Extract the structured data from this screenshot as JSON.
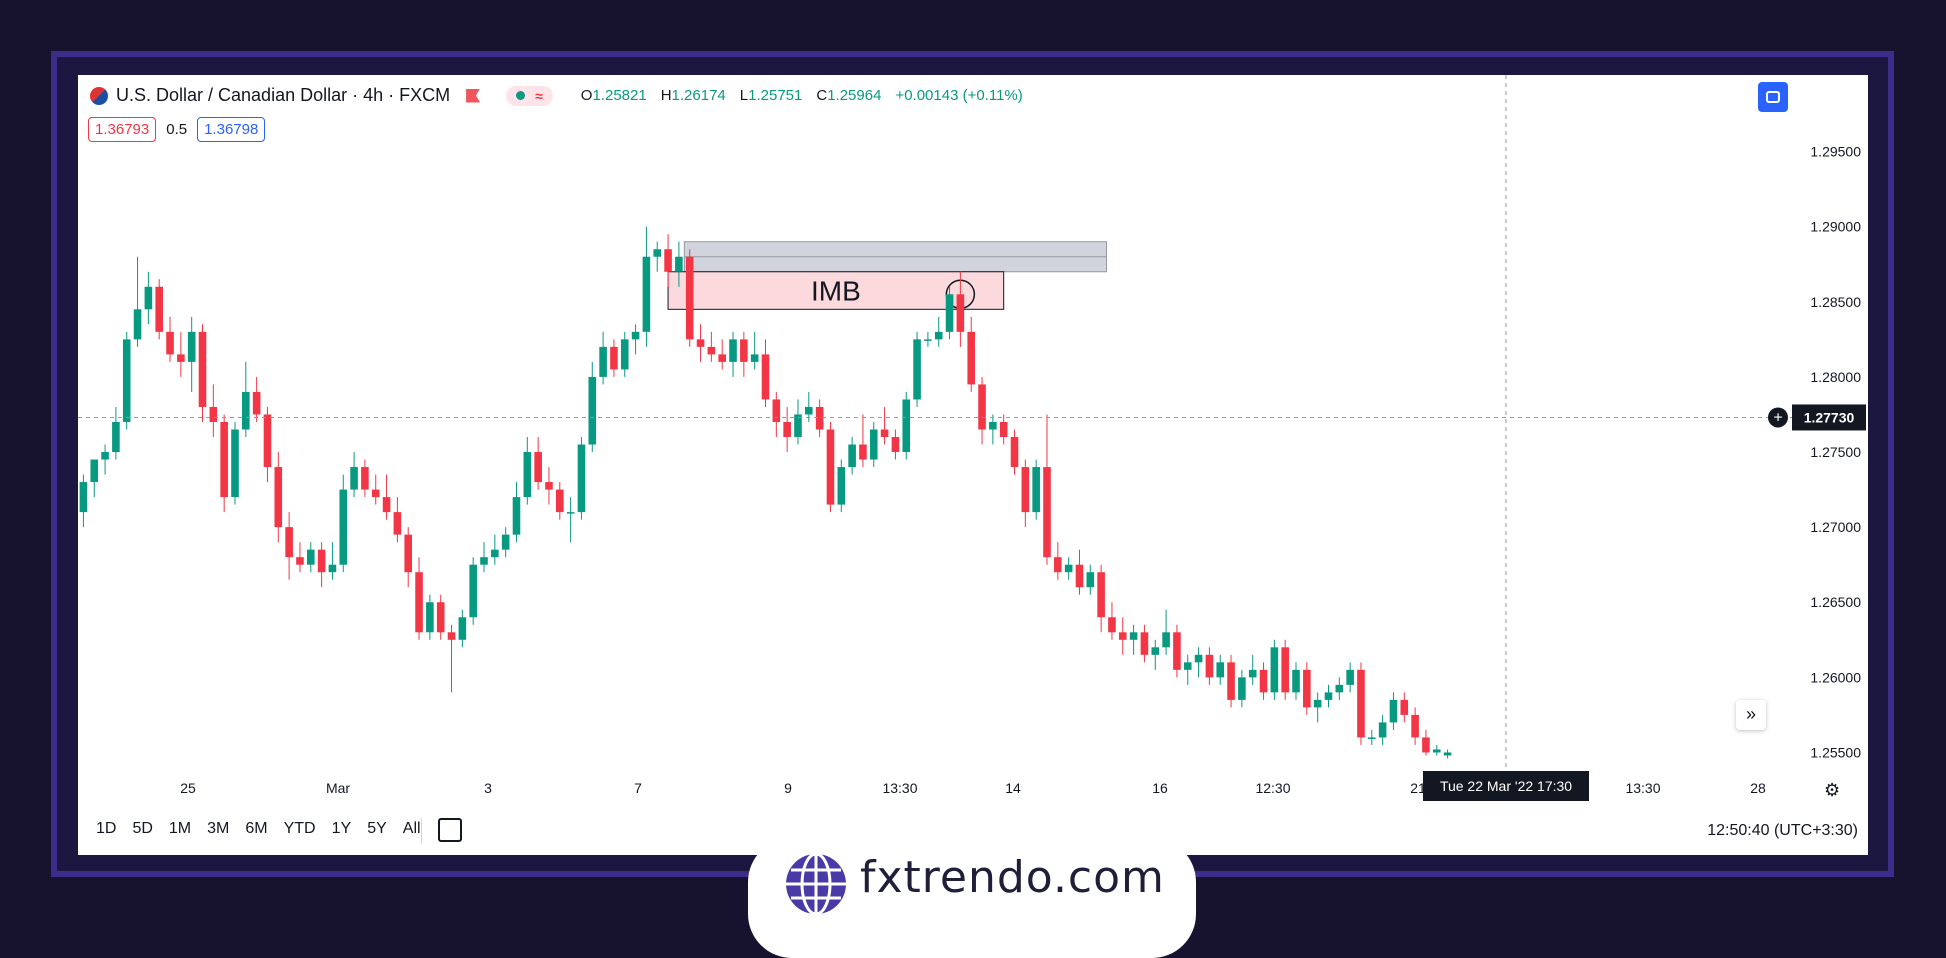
{
  "header": {
    "symbol_title": "U.S. Dollar / Canadian Dollar · 4h · FXCM",
    "ohlc": {
      "o_label": "O",
      "o": "1.25821",
      "h_label": "H",
      "h": "1.26174",
      "l_label": "L",
      "l": "1.25751",
      "c_label": "C",
      "c": "1.25964",
      "change": "+0.00143 (+0.11%)"
    },
    "indicator_icon": "wave-icon",
    "sell_price": "1.36793",
    "spread": "0.5",
    "buy_price": "1.36798"
  },
  "price_axis": {
    "ticks": [
      "1.29500",
      "1.29000",
      "1.28500",
      "1.28000",
      "1.27500",
      "1.27000",
      "1.26500",
      "1.26000",
      "1.25500"
    ],
    "crosshair_price": "1.27730"
  },
  "time_axis": {
    "ticks": [
      "25",
      "Mar",
      "3",
      "7",
      "9",
      "13:30",
      "14",
      "16",
      "12:30",
      "21",
      "13:30",
      "28"
    ],
    "crosshair_time": "Tue 22 Mar '22   17:30"
  },
  "annotations": {
    "imbalance_label": "IMB"
  },
  "toolbar": {
    "ranges": [
      "1D",
      "5D",
      "1M",
      "3M",
      "6M",
      "YTD",
      "1Y",
      "5Y",
      "All"
    ],
    "clock": "12:50:40 (UTC+3:30)"
  },
  "brand": {
    "site": "fxtrendo.com"
  },
  "colors": {
    "up": "#089981",
    "down": "#f23645",
    "frame": "#3c2d8a",
    "background": "#17132f"
  },
  "chart_data": {
    "type": "candlestick",
    "title": "U.S. Dollar / Canadian Dollar · 4h · FXCM",
    "ylim": [
      1.2535,
      1.2985
    ],
    "grid": false,
    "candles": [
      [
        1.271,
        1.2735,
        1.27,
        1.273
      ],
      [
        1.273,
        1.2745,
        1.272,
        1.2745
      ],
      [
        1.2745,
        1.2755,
        1.2735,
        1.275
      ],
      [
        1.275,
        1.278,
        1.2745,
        1.277
      ],
      [
        1.277,
        1.283,
        1.2765,
        1.2825
      ],
      [
        1.2825,
        1.288,
        1.282,
        1.2845
      ],
      [
        1.2845,
        1.287,
        1.2835,
        1.286
      ],
      [
        1.286,
        1.2865,
        1.2825,
        1.283
      ],
      [
        1.283,
        1.284,
        1.281,
        1.2815
      ],
      [
        1.2815,
        1.283,
        1.28,
        1.281
      ],
      [
        1.281,
        1.284,
        1.279,
        1.283
      ],
      [
        1.283,
        1.2835,
        1.277,
        1.278
      ],
      [
        1.278,
        1.2795,
        1.276,
        1.277
      ],
      [
        1.277,
        1.2775,
        1.271,
        1.272
      ],
      [
        1.272,
        1.277,
        1.2715,
        1.2765
      ],
      [
        1.2765,
        1.281,
        1.276,
        1.279
      ],
      [
        1.279,
        1.28,
        1.277,
        1.2775
      ],
      [
        1.2775,
        1.278,
        1.273,
        1.274
      ],
      [
        1.274,
        1.275,
        1.269,
        1.27
      ],
      [
        1.27,
        1.271,
        1.2665,
        1.268
      ],
      [
        1.268,
        1.269,
        1.267,
        1.2675
      ],
      [
        1.2675,
        1.269,
        1.267,
        1.2685
      ],
      [
        1.2685,
        1.269,
        1.266,
        1.267
      ],
      [
        1.267,
        1.269,
        1.2665,
        1.2675
      ],
      [
        1.2675,
        1.2735,
        1.267,
        1.2725
      ],
      [
        1.2725,
        1.275,
        1.272,
        1.274
      ],
      [
        1.274,
        1.2745,
        1.272,
        1.2725
      ],
      [
        1.2725,
        1.2735,
        1.2715,
        1.272
      ],
      [
        1.272,
        1.2735,
        1.2705,
        1.271
      ],
      [
        1.271,
        1.272,
        1.269,
        1.2695
      ],
      [
        1.2695,
        1.27,
        1.266,
        1.267
      ],
      [
        1.267,
        1.268,
        1.2625,
        1.263
      ],
      [
        1.263,
        1.2655,
        1.2625,
        1.265
      ],
      [
        1.265,
        1.2655,
        1.2625,
        1.263
      ],
      [
        1.263,
        1.2635,
        1.259,
        1.2625
      ],
      [
        1.2625,
        1.2645,
        1.262,
        1.264
      ],
      [
        1.264,
        1.268,
        1.2635,
        1.2675
      ],
      [
        1.2675,
        1.269,
        1.267,
        1.268
      ],
      [
        1.268,
        1.2695,
        1.2675,
        1.2685
      ],
      [
        1.2685,
        1.27,
        1.268,
        1.2695
      ],
      [
        1.2695,
        1.273,
        1.269,
        1.272
      ],
      [
        1.272,
        1.276,
        1.2715,
        1.275
      ],
      [
        1.275,
        1.276,
        1.2725,
        1.273
      ],
      [
        1.273,
        1.274,
        1.2715,
        1.2725
      ],
      [
        1.2725,
        1.273,
        1.2705,
        1.271
      ],
      [
        1.271,
        1.272,
        1.269,
        1.271
      ],
      [
        1.271,
        1.276,
        1.2705,
        1.2755
      ],
      [
        1.2755,
        1.281,
        1.275,
        1.28
      ],
      [
        1.28,
        1.283,
        1.2795,
        1.282
      ],
      [
        1.282,
        1.2825,
        1.28,
        1.2805
      ],
      [
        1.2805,
        1.283,
        1.28,
        1.2825
      ],
      [
        1.2825,
        1.2835,
        1.2815,
        1.283
      ],
      [
        1.283,
        1.29,
        1.282,
        1.288
      ],
      [
        1.288,
        1.289,
        1.287,
        1.2885
      ],
      [
        1.2885,
        1.2895,
        1.286,
        1.287
      ],
      [
        1.287,
        1.289,
        1.286,
        1.288
      ],
      [
        1.288,
        1.2885,
        1.282,
        1.2825
      ],
      [
        1.2825,
        1.2835,
        1.281,
        1.282
      ],
      [
        1.282,
        1.283,
        1.281,
        1.2815
      ],
      [
        1.2815,
        1.2825,
        1.2805,
        1.281
      ],
      [
        1.281,
        1.283,
        1.28,
        1.2825
      ],
      [
        1.2825,
        1.283,
        1.28,
        1.281
      ],
      [
        1.281,
        1.283,
        1.2805,
        1.2815
      ],
      [
        1.2815,
        1.2825,
        1.278,
        1.2785
      ],
      [
        1.2785,
        1.279,
        1.276,
        1.277
      ],
      [
        1.277,
        1.278,
        1.275,
        1.276
      ],
      [
        1.276,
        1.2785,
        1.2755,
        1.2775
      ],
      [
        1.2775,
        1.279,
        1.277,
        1.278
      ],
      [
        1.278,
        1.2785,
        1.276,
        1.2765
      ],
      [
        1.2765,
        1.277,
        1.271,
        1.2715
      ],
      [
        1.2715,
        1.2745,
        1.271,
        1.274
      ],
      [
        1.274,
        1.276,
        1.2735,
        1.2755
      ],
      [
        1.2755,
        1.2775,
        1.274,
        1.2745
      ],
      [
        1.2745,
        1.277,
        1.274,
        1.2765
      ],
      [
        1.2765,
        1.278,
        1.2755,
        1.276
      ],
      [
        1.276,
        1.2765,
        1.2745,
        1.275
      ],
      [
        1.275,
        1.279,
        1.2745,
        1.2785
      ],
      [
        1.2785,
        1.283,
        1.278,
        1.2825
      ],
      [
        1.2825,
        1.283,
        1.282,
        1.2825
      ],
      [
        1.2825,
        1.284,
        1.282,
        1.283
      ],
      [
        1.283,
        1.286,
        1.2825,
        1.2855
      ],
      [
        1.2855,
        1.287,
        1.282,
        1.283
      ],
      [
        1.283,
        1.284,
        1.279,
        1.2795
      ],
      [
        1.2795,
        1.28,
        1.2755,
        1.2765
      ],
      [
        1.2765,
        1.2775,
        1.2755,
        1.277
      ],
      [
        1.277,
        1.2775,
        1.2755,
        1.276
      ],
      [
        1.276,
        1.2765,
        1.2735,
        1.274
      ],
      [
        1.274,
        1.2745,
        1.27,
        1.271
      ],
      [
        1.271,
        1.2745,
        1.2705,
        1.274
      ],
      [
        1.274,
        1.2775,
        1.2675,
        1.268
      ],
      [
        1.268,
        1.269,
        1.2665,
        1.267
      ],
      [
        1.267,
        1.268,
        1.2665,
        1.2675
      ],
      [
        1.2675,
        1.2685,
        1.2655,
        1.266
      ],
      [
        1.266,
        1.2675,
        1.2655,
        1.267
      ],
      [
        1.267,
        1.2675,
        1.263,
        1.264
      ],
      [
        1.264,
        1.265,
        1.2625,
        1.263
      ],
      [
        1.263,
        1.264,
        1.2615,
        1.2625
      ],
      [
        1.2625,
        1.2635,
        1.2615,
        1.263
      ],
      [
        1.263,
        1.2635,
        1.261,
        1.2615
      ],
      [
        1.2615,
        1.2625,
        1.2605,
        1.262
      ],
      [
        1.262,
        1.2645,
        1.2615,
        1.263
      ],
      [
        1.263,
        1.2635,
        1.26,
        1.2605
      ],
      [
        1.2605,
        1.2615,
        1.2595,
        1.261
      ],
      [
        1.261,
        1.262,
        1.26,
        1.2615
      ],
      [
        1.2615,
        1.262,
        1.2595,
        1.26
      ],
      [
        1.26,
        1.2615,
        1.2595,
        1.261
      ],
      [
        1.261,
        1.2615,
        1.258,
        1.2585
      ],
      [
        1.2585,
        1.2605,
        1.258,
        1.26
      ],
      [
        1.26,
        1.2615,
        1.2595,
        1.2605
      ],
      [
        1.2605,
        1.261,
        1.2585,
        1.259
      ],
      [
        1.259,
        1.2625,
        1.2585,
        1.262
      ],
      [
        1.262,
        1.2625,
        1.2585,
        1.259
      ],
      [
        1.259,
        1.261,
        1.2585,
        1.2605
      ],
      [
        1.2605,
        1.261,
        1.2575,
        1.258
      ],
      [
        1.258,
        1.259,
        1.257,
        1.2585
      ],
      [
        1.2585,
        1.2595,
        1.258,
        1.259
      ],
      [
        1.259,
        1.26,
        1.2585,
        1.2595
      ],
      [
        1.2595,
        1.261,
        1.259,
        1.2605
      ],
      [
        1.2605,
        1.261,
        1.2555,
        1.256
      ],
      [
        1.256,
        1.2565,
        1.2555,
        1.256
      ],
      [
        1.256,
        1.2575,
        1.2555,
        1.257
      ],
      [
        1.257,
        1.259,
        1.2565,
        1.2585
      ],
      [
        1.2585,
        1.259,
        1.257,
        1.2575
      ],
      [
        1.2575,
        1.258,
        1.2555,
        1.256
      ],
      [
        1.256,
        1.2565,
        1.2548,
        1.255
      ],
      [
        1.255,
        1.2555,
        1.2548,
        1.2552
      ],
      [
        1.2548,
        1.2552,
        1.2546,
        1.255
      ]
    ],
    "imbalance_zone": {
      "from_candle": 55,
      "to_candle": 85,
      "low": 1.2845,
      "high": 1.287
    },
    "grey_zone": {
      "from_candle": 56,
      "to_candle": 95,
      "low": 1.287,
      "high": 1.289
    },
    "crosshair_price": 1.2773
  }
}
